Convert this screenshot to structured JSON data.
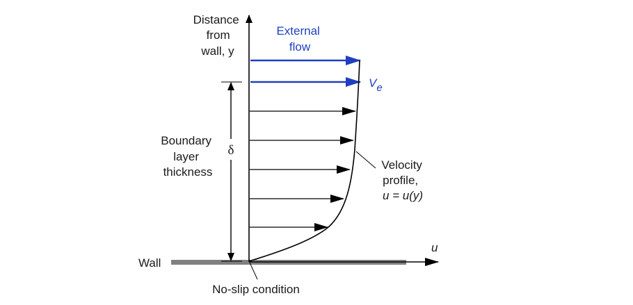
{
  "y_axis_label": [
    "Distance",
    "from",
    "wall, y"
  ],
  "u_axis_label": "u",
  "external_flow_label": [
    "External",
    "flow"
  ],
  "ve_label": {
    "main": "V",
    "sub": "e"
  },
  "boundary_layer_label": [
    "Boundary",
    "layer",
    "thickness"
  ],
  "delta_label": "δ",
  "velocity_profile_label": [
    "Velocity",
    "profile,",
    "u = u(y)"
  ],
  "wall_label": "Wall",
  "no_slip_label": "No-slip condition",
  "colors": {
    "external_flow": "#1f3fbf",
    "line": "#000000",
    "wall": "#808080"
  }
}
